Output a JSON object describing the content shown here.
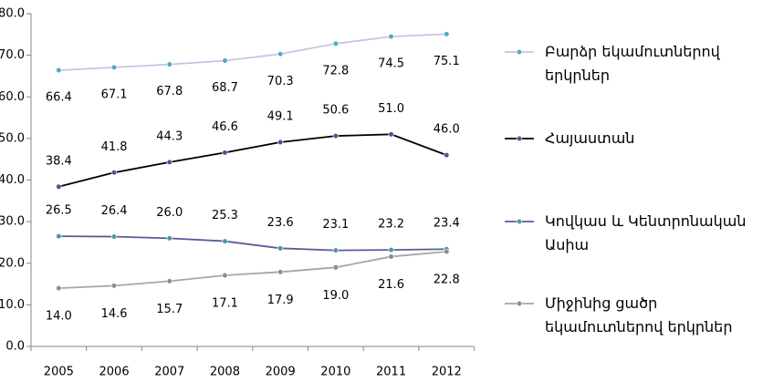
{
  "chart_data": {
    "type": "line",
    "categories": [
      "2005",
      "2006",
      "2007",
      "2008",
      "2009",
      "2010",
      "2011",
      "2012"
    ],
    "series": [
      {
        "name": "Բարձր եկամուտներով երկրներ",
        "color": "#c9c3e0",
        "marker_color": "#4bacc6",
        "values": [
          66.4,
          67.1,
          67.8,
          68.7,
          70.3,
          72.8,
          74.5,
          75.1
        ],
        "value_labels": [
          "66.4",
          "67.1",
          "67.8",
          "68.7",
          "70.3",
          "72.8",
          "74.5",
          "75.1"
        ]
      },
      {
        "name": "Հայաստան",
        "color": "#000000",
        "marker_color": "#5b4d8f",
        "values": [
          38.4,
          41.8,
          44.3,
          46.6,
          49.1,
          50.6,
          51.0,
          46.0
        ],
        "value_labels": [
          "38.4",
          "41.8",
          "44.3",
          "46.6",
          "49.1",
          "50.6",
          "51.0",
          "46.0"
        ]
      },
      {
        "name": "Կովկաս և Կենտրոնական Ասիա",
        "color": "#5a5a9c",
        "marker_color": "#4a9a9a",
        "values": [
          26.5,
          26.4,
          26.0,
          25.3,
          23.6,
          23.1,
          23.2,
          23.4
        ],
        "value_labels": [
          "26.5",
          "26.4",
          "26.0",
          "25.3",
          "23.6",
          "23.1",
          "23.2",
          "23.4"
        ]
      },
      {
        "name": "Միջինից ցածր եկամուտներով երկրներ",
        "color": "#a6a6a6",
        "marker_color": "#8c8c8c",
        "values": [
          14.0,
          14.6,
          15.7,
          17.1,
          17.9,
          19.0,
          21.6,
          22.8
        ],
        "value_labels": [
          "14.0",
          "14.6",
          "15.7",
          "17.1",
          "17.9",
          "19.0",
          "21.6",
          "22.8"
        ]
      }
    ],
    "ylim": [
      0,
      80
    ],
    "yticks": [
      {
        "value": 0,
        "label": "0.0"
      },
      {
        "value": 10,
        "label": "10.0"
      },
      {
        "value": 20,
        "label": "20.0"
      },
      {
        "value": 30,
        "label": "30.0"
      },
      {
        "value": 40,
        "label": "40.0"
      },
      {
        "value": 50,
        "label": "50.0"
      },
      {
        "value": 60,
        "label": "60.0"
      },
      {
        "value": 70,
        "label": "70.0"
      },
      {
        "value": 80,
        "label": "80.0"
      }
    ],
    "grid": false,
    "legend": "right"
  }
}
